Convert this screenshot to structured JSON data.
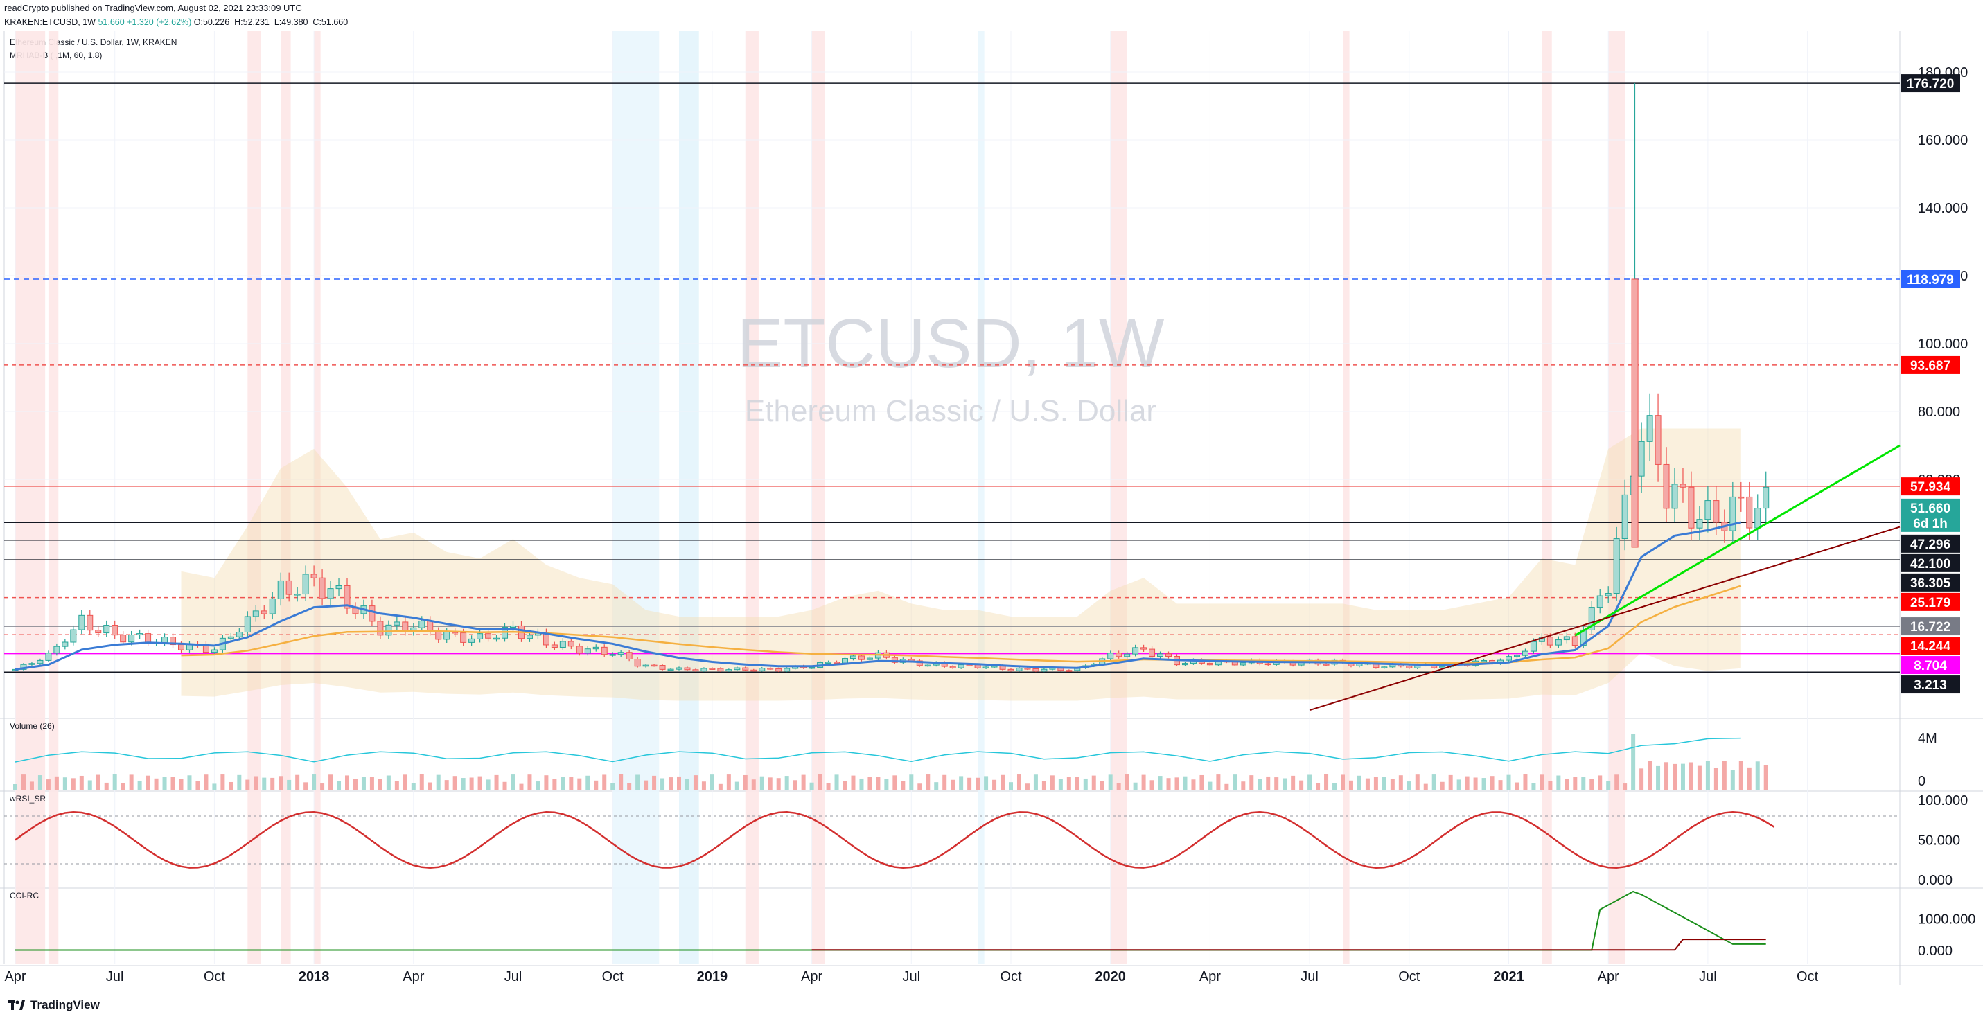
{
  "header": {
    "publisher": "readCrypto published on TradingView.com, August 02, 2021 23:33:09 UTC",
    "symbol_line": "KRAKEN:ETCUSD, 1W",
    "last": "51.660",
    "change": "+1.320 (+2.62%)",
    "ohlc": "O:50.226  H:52.231  L:49.380  C:51.660"
  },
  "legend": {
    "title": "Ethereum Classic / U.S. Dollar, 1W, KRAKEN",
    "indicator": "MRHAB-B ( ,1M, 60, 1.8)"
  },
  "watermark": {
    "symbol": "ETCUSD, 1W",
    "name": "Ethereum Classic / U.S. Dollar"
  },
  "footer": {
    "brand": "TradingView"
  },
  "colors": {
    "up": "#26a69a",
    "down": "#ef5350",
    "green_line": "#00e600",
    "maroon_line": "#8b0000",
    "blue_line": "#3a7bd5",
    "orange_line": "#f5b041",
    "magenta": "#ff00ff",
    "band": "#f5deb3"
  },
  "chart_data": [
    {
      "type": "candlestick",
      "pane": "price",
      "title": "Ethereum Classic / U.S. Dollar, 1W, KRAKEN",
      "y_ticks": [
        "180.000",
        "160.000",
        "140.000",
        "120.000",
        "100.000",
        "80.000",
        "60.000"
      ],
      "ylim": [
        -10,
        190
      ],
      "x_ticks": [
        "Apr",
        "Jul",
        "Oct",
        "2018",
        "Apr",
        "Jul",
        "Oct",
        "2019",
        "Apr",
        "Jul",
        "Oct",
        "2020",
        "Apr",
        "Jul",
        "Oct",
        "2021",
        "Apr",
        "Jul",
        "Oct"
      ],
      "x_ticks_bold": [
        "2018",
        "2019",
        "2020",
        "2021"
      ],
      "series_monthly_close": [
        {
          "date": "2017-04",
          "close": 4
        },
        {
          "date": "2017-05",
          "close": 8
        },
        {
          "date": "2017-06",
          "close": 18
        },
        {
          "date": "2017-07",
          "close": 14
        },
        {
          "date": "2017-08",
          "close": 13
        },
        {
          "date": "2017-09",
          "close": 11
        },
        {
          "date": "2017-10",
          "close": 10
        },
        {
          "date": "2017-11",
          "close": 18
        },
        {
          "date": "2017-12",
          "close": 27
        },
        {
          "date": "2018-01",
          "close": 30
        },
        {
          "date": "2018-02",
          "close": 24
        },
        {
          "date": "2018-03",
          "close": 16
        },
        {
          "date": "2018-04",
          "close": 17
        },
        {
          "date": "2018-05",
          "close": 14
        },
        {
          "date": "2018-06",
          "close": 13
        },
        {
          "date": "2018-07",
          "close": 16
        },
        {
          "date": "2018-08",
          "close": 12
        },
        {
          "date": "2018-09",
          "close": 10
        },
        {
          "date": "2018-10",
          "close": 9
        },
        {
          "date": "2018-11",
          "close": 5
        },
        {
          "date": "2018-12",
          "close": 4
        },
        {
          "date": "2019-01",
          "close": 4
        },
        {
          "date": "2019-02",
          "close": 4
        },
        {
          "date": "2019-03",
          "close": 4
        },
        {
          "date": "2019-04",
          "close": 5
        },
        {
          "date": "2019-05",
          "close": 7
        },
        {
          "date": "2019-06",
          "close": 8
        },
        {
          "date": "2019-07",
          "close": 6
        },
        {
          "date": "2019-08",
          "close": 5
        },
        {
          "date": "2019-09",
          "close": 5
        },
        {
          "date": "2019-10",
          "close": 4
        },
        {
          "date": "2019-11",
          "close": 4
        },
        {
          "date": "2019-12",
          "close": 4
        },
        {
          "date": "2020-01",
          "close": 8
        },
        {
          "date": "2020-02",
          "close": 10
        },
        {
          "date": "2020-03",
          "close": 6
        },
        {
          "date": "2020-04",
          "close": 6
        },
        {
          "date": "2020-05",
          "close": 6
        },
        {
          "date": "2020-06",
          "close": 6
        },
        {
          "date": "2020-07",
          "close": 6
        },
        {
          "date": "2020-08",
          "close": 6
        },
        {
          "date": "2020-09",
          "close": 5
        },
        {
          "date": "2020-10",
          "close": 5
        },
        {
          "date": "2020-11",
          "close": 5
        },
        {
          "date": "2020-12",
          "close": 6
        },
        {
          "date": "2021-01",
          "close": 7
        },
        {
          "date": "2021-02",
          "close": 13
        },
        {
          "date": "2021-03",
          "close": 12
        },
        {
          "date": "2021-04",
          "close": 30
        },
        {
          "date": "2021-05",
          "close": 75
        },
        {
          "date": "2021-06",
          "close": 55
        },
        {
          "date": "2021-07",
          "close": 48
        },
        {
          "date": "2021-08",
          "close": 51.66
        }
      ],
      "peak": {
        "date": "2021-05",
        "high": 176.72
      },
      "price_labels": [
        {
          "text": "176.720",
          "value": 176.72,
          "color": "#131722"
        },
        {
          "text": "118.979",
          "value": 118.979,
          "color": "#2962ff"
        },
        {
          "text": "93.687",
          "value": 93.687,
          "color": "#ff0000"
        },
        {
          "text": "57.934",
          "value": 57.934,
          "color": "#ff0000"
        },
        {
          "text": "51.660",
          "value": 51.66,
          "color": "#26a69a",
          "sub": "6d 1h"
        },
        {
          "text": "47.296",
          "value": 47.296,
          "color": "#131722"
        },
        {
          "text": "42.100",
          "value": 42.1,
          "color": "#131722"
        },
        {
          "text": "36.305",
          "value": 36.305,
          "color": "#131722"
        },
        {
          "text": "25.179",
          "value": 25.179,
          "color": "#ff0000"
        },
        {
          "text": "16.722",
          "value": 16.722,
          "color": "#787b86"
        },
        {
          "text": "14.244",
          "value": 14.244,
          "color": "#ff0000"
        },
        {
          "text": "8.704",
          "value": 8.704,
          "color": "#ff00ff"
        },
        {
          "text": "3.213",
          "value": 3.213,
          "color": "#131722"
        }
      ]
    },
    {
      "type": "bar",
      "pane": "volume",
      "title": "Volume (26)",
      "y_ticks": [
        "4M",
        "0"
      ],
      "peak_date": "2021-05"
    },
    {
      "type": "line",
      "pane": "oscillator",
      "title": "wRSI_SR",
      "y_ticks": [
        "100.000",
        "50.000",
        "0.000"
      ],
      "ylim": [
        0,
        100
      ]
    },
    {
      "type": "line",
      "pane": "cci",
      "title": "CCI-RC",
      "y_ticks": [
        "1000.000",
        "0.000"
      ],
      "ylim": [
        0,
        1700
      ],
      "peak": {
        "date": "2021-05",
        "value": 1700
      }
    }
  ]
}
